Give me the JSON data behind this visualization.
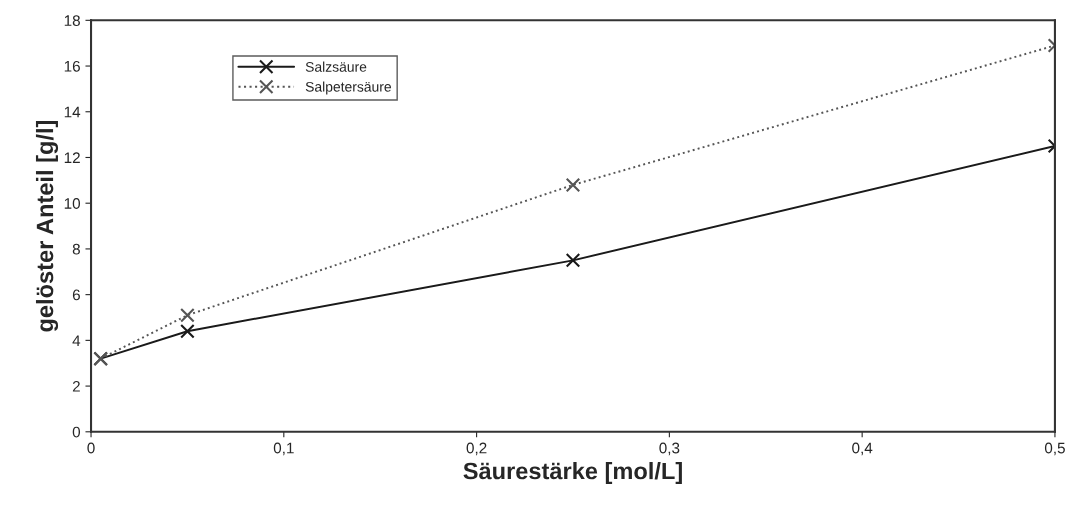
{
  "chart_data": {
    "type": "line",
    "xlabel": "Säurestärke [mol/L]",
    "ylabel": "gelöster Anteil [g/l]",
    "x": [
      0.005,
      0.05,
      0.25,
      0.5
    ],
    "series": [
      {
        "name": "Salzsäure",
        "color": "#1a1a1a",
        "values": [
          3.2,
          4.4,
          7.5,
          12.5
        ],
        "line_style": "solid"
      },
      {
        "name": "Salpetersäure",
        "color": "#555555",
        "values": [
          3.2,
          5.1,
          10.8,
          16.9
        ],
        "line_style": "dotted"
      }
    ],
    "marker": "cross",
    "xlim": [
      0,
      0.5
    ],
    "ylim": [
      0,
      18
    ],
    "xticks": [
      0,
      {
        "value": 0.1,
        "label": "0,1"
      },
      {
        "value": 0.2,
        "label": "0,2"
      },
      {
        "value": 0.3,
        "label": "0,3"
      },
      {
        "value": 0.4,
        "label": "0,4"
      },
      {
        "value": 0.5,
        "label": "0,5"
      }
    ],
    "yticks": [
      0,
      2,
      4,
      6,
      8,
      10,
      12,
      14,
      16,
      18
    ],
    "grid": false,
    "legend": "top left"
  }
}
